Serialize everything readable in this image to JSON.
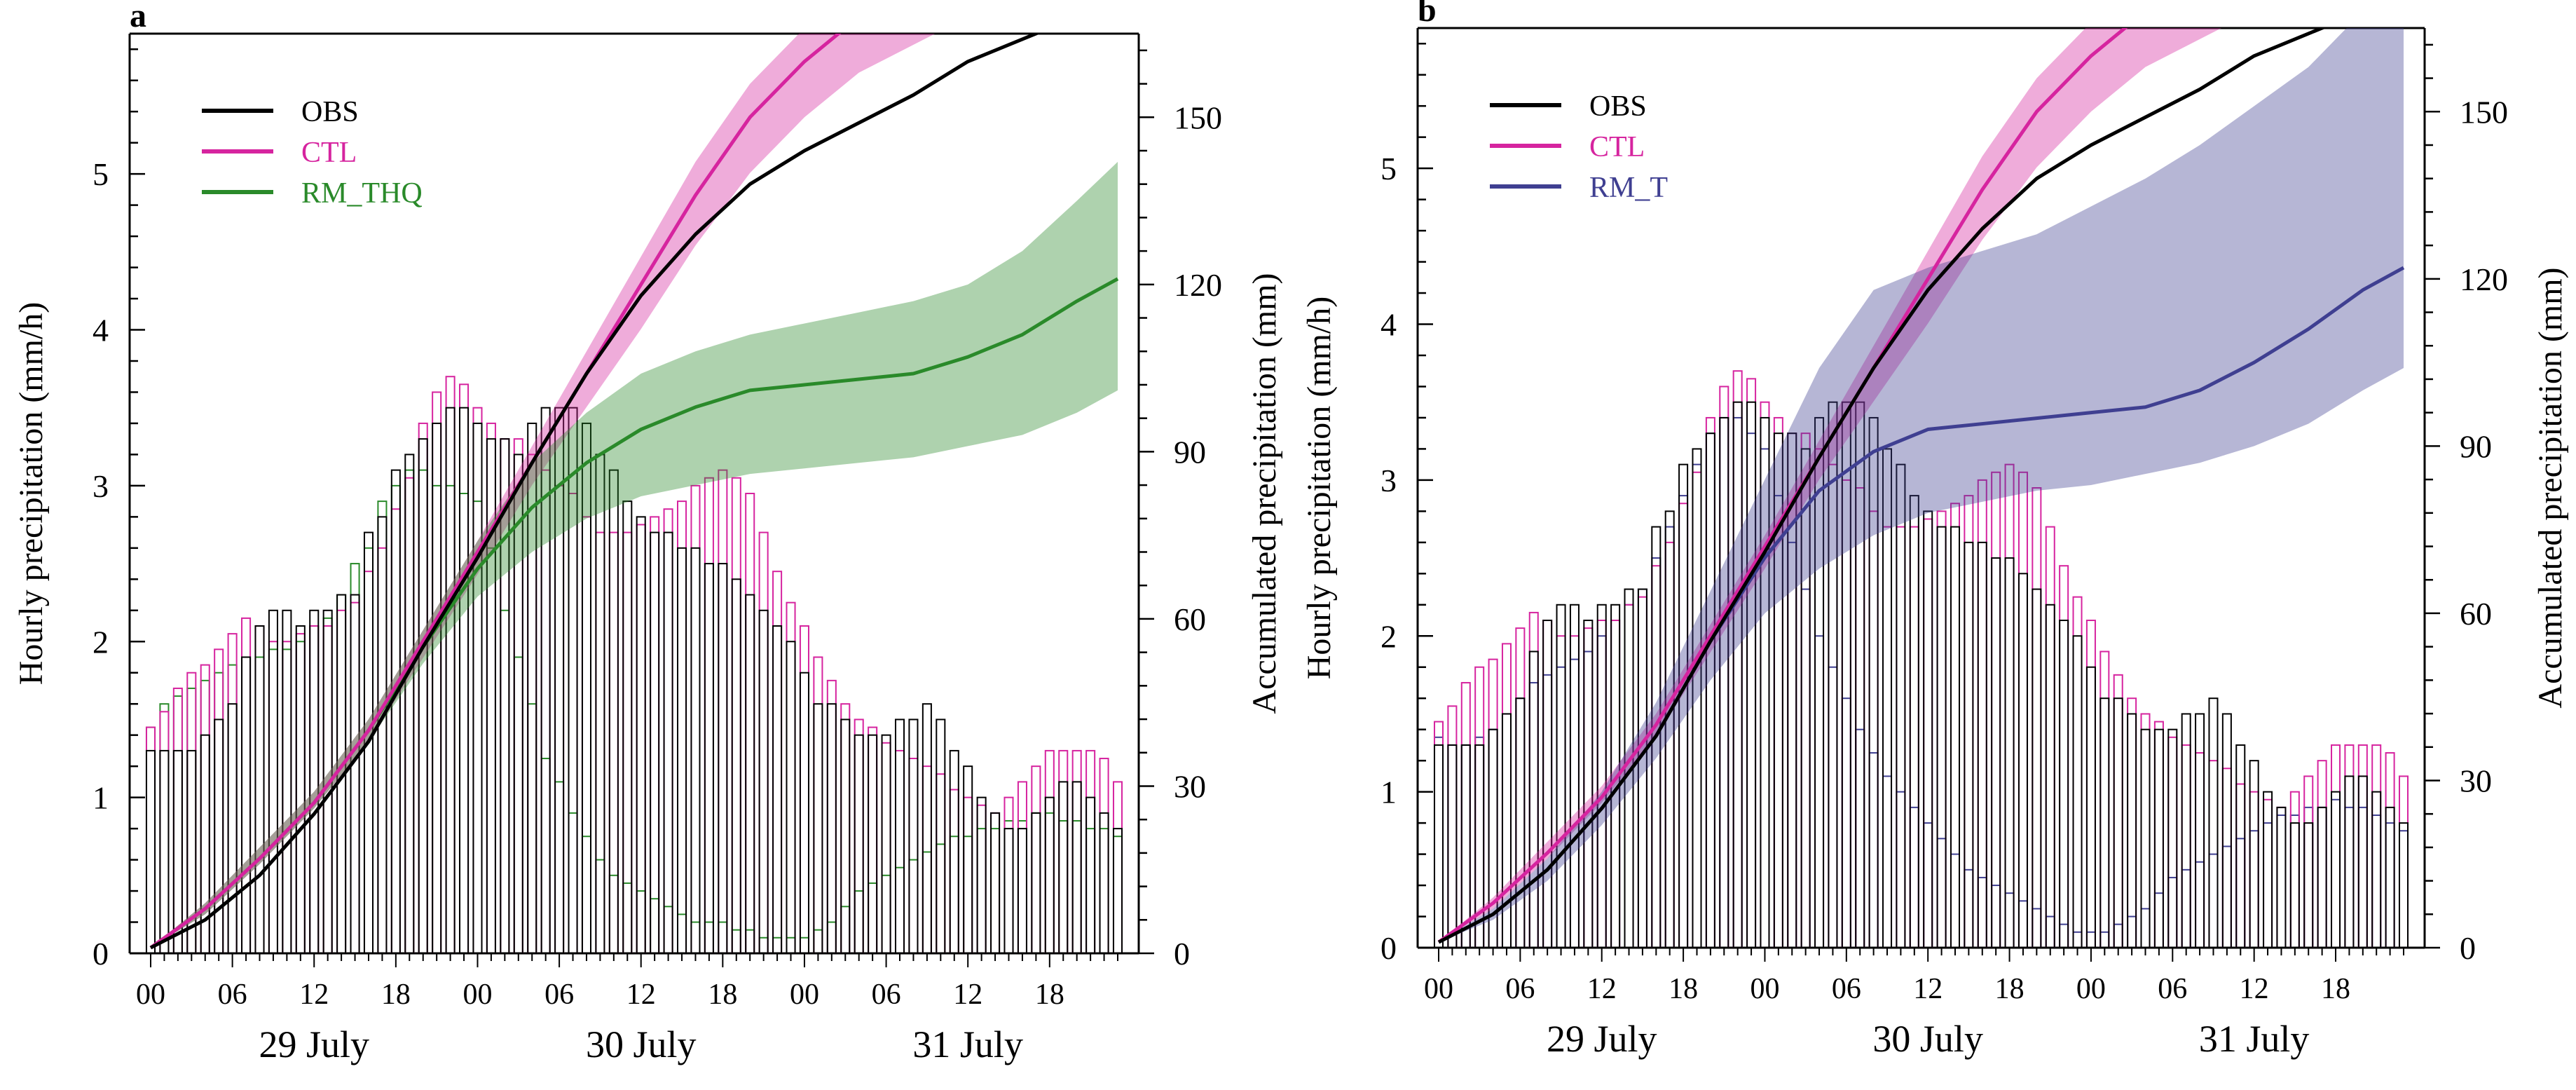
{
  "chart_data": [
    {
      "panel_label": "a",
      "type": "bar+line",
      "ylabel_left": "Hourly precipitation (mm/h)",
      "ylabel_right": "Accumulated precipitation (mm)",
      "ylim_left": [
        0,
        5.9
      ],
      "ylim_right": [
        0,
        165
      ],
      "yticks_left": [
        0,
        1,
        2,
        3,
        4,
        5
      ],
      "yticks_right": [
        0,
        30,
        60,
        90,
        120,
        150
      ],
      "x_hours_range": [
        0,
        71
      ],
      "x_tick_labels": [
        "00",
        "06",
        "12",
        "18",
        "00",
        "06",
        "12",
        "18",
        "00",
        "06",
        "12",
        "18"
      ],
      "x_tick_hours": [
        0,
        6,
        12,
        18,
        24,
        30,
        36,
        42,
        48,
        54,
        60,
        66
      ],
      "date_labels": [
        {
          "text": "29 July",
          "hour": 12
        },
        {
          "text": "30 July",
          "hour": 36
        },
        {
          "text": "31 July",
          "hour": 60
        }
      ],
      "legend_position": "top-left",
      "legend": [
        {
          "name": "OBS",
          "color": "#000000"
        },
        {
          "name": "CTL",
          "color": "#d6249f"
        },
        {
          "name": "RM_THQ",
          "color": "#2a8a2a"
        }
      ],
      "bars": {
        "hours": [
          0,
          1,
          2,
          3,
          4,
          5,
          6,
          7,
          8,
          9,
          10,
          11,
          12,
          13,
          14,
          15,
          16,
          17,
          18,
          19,
          20,
          21,
          22,
          23,
          24,
          25,
          26,
          27,
          28,
          29,
          30,
          31,
          32,
          33,
          34,
          35,
          36,
          37,
          38,
          39,
          40,
          41,
          42,
          43,
          44,
          45,
          46,
          47,
          48,
          49,
          50,
          51,
          52,
          53,
          54,
          55,
          56,
          57,
          58,
          59,
          60,
          61,
          62,
          63,
          64,
          65,
          66,
          67,
          68,
          69,
          70,
          71
        ],
        "OBS": [
          1.3,
          1.3,
          1.3,
          1.3,
          1.4,
          1.5,
          1.6,
          1.9,
          2.1,
          2.2,
          2.2,
          2.1,
          2.2,
          2.2,
          2.3,
          2.3,
          2.7,
          2.8,
          3.1,
          3.2,
          3.3,
          3.4,
          3.5,
          3.5,
          3.4,
          3.3,
          3.3,
          3.2,
          3.4,
          3.5,
          3.5,
          3.5,
          3.4,
          3.2,
          3.1,
          2.9,
          2.8,
          2.7,
          2.7,
          2.6,
          2.6,
          2.5,
          2.5,
          2.4,
          2.3,
          2.2,
          2.1,
          2.0,
          1.8,
          1.6,
          1.6,
          1.5,
          1.4,
          1.4,
          1.4,
          1.5,
          1.5,
          1.6,
          1.5,
          1.3,
          1.2,
          1.0,
          0.9,
          0.8,
          0.8,
          0.9,
          1.0,
          1.1,
          1.1,
          1.0,
          0.9,
          0.8
        ],
        "CTL": [
          1.45,
          1.55,
          1.7,
          1.8,
          1.85,
          1.95,
          2.05,
          2.15,
          2.1,
          2.0,
          2.0,
          2.05,
          2.1,
          2.1,
          2.2,
          2.25,
          2.45,
          2.6,
          2.85,
          3.05,
          3.4,
          3.6,
          3.7,
          3.65,
          3.5,
          3.4,
          3.3,
          3.3,
          3.2,
          3.1,
          3.0,
          2.95,
          2.8,
          2.7,
          2.7,
          2.7,
          2.75,
          2.8,
          2.85,
          2.9,
          3.0,
          3.05,
          3.1,
          3.05,
          2.95,
          2.7,
          2.45,
          2.25,
          2.1,
          1.9,
          1.75,
          1.6,
          1.5,
          1.45,
          1.35,
          1.3,
          1.25,
          1.2,
          1.15,
          1.05,
          1.0,
          0.95,
          0.9,
          1.0,
          1.1,
          1.2,
          1.3,
          1.3,
          1.3,
          1.3,
          1.25,
          1.1
        ],
        "RM_THQ": [
          1.45,
          1.6,
          1.65,
          1.7,
          1.75,
          1.8,
          1.85,
          1.9,
          1.9,
          1.95,
          1.95,
          2.0,
          2.1,
          2.15,
          2.3,
          2.5,
          2.6,
          2.9,
          3.0,
          3.1,
          3.1,
          3.0,
          3.0,
          2.95,
          2.9,
          2.6,
          2.2,
          1.9,
          1.6,
          1.25,
          1.1,
          0.9,
          0.75,
          0.6,
          0.5,
          0.45,
          0.4,
          0.35,
          0.3,
          0.25,
          0.2,
          0.2,
          0.2,
          0.15,
          0.15,
          0.1,
          0.1,
          0.1,
          0.1,
          0.15,
          0.2,
          0.3,
          0.4,
          0.45,
          0.5,
          0.55,
          0.6,
          0.65,
          0.7,
          0.75,
          0.75,
          0.8,
          0.8,
          0.85,
          0.85,
          0.9,
          0.9,
          0.85,
          0.85,
          0.8,
          0.8,
          0.75
        ]
      },
      "accumulated": {
        "hours": [
          0,
          4,
          8,
          12,
          16,
          20,
          24,
          28,
          32,
          36,
          40,
          44,
          48,
          52,
          56,
          60,
          64,
          68,
          71
        ],
        "OBS": [
          1,
          6,
          14,
          25,
          38,
          55,
          71,
          88,
          104,
          118,
          129,
          138,
          144,
          149,
          154,
          160,
          164,
          168,
          171
        ],
        "CTL": [
          1,
          8,
          17,
          27,
          40,
          56,
          72,
          88,
          104,
          120,
          136,
          150,
          160,
          168,
          173,
          178,
          182,
          188,
          191
        ],
        "CTL_band": [
          [
            1,
            1
          ],
          [
            7,
            9
          ],
          [
            16,
            19
          ],
          [
            26,
            29
          ],
          [
            38,
            42
          ],
          [
            53,
            58
          ],
          [
            68,
            74
          ],
          [
            84,
            91
          ],
          [
            98,
            108
          ],
          [
            112,
            125
          ],
          [
            127,
            142
          ],
          [
            140,
            156
          ],
          [
            150,
            166
          ],
          [
            158,
            175
          ],
          [
            163,
            181
          ],
          [
            168,
            186
          ],
          [
            172,
            190
          ],
          [
            178,
            195
          ],
          [
            181,
            198
          ]
        ],
        "RM_THQ": [
          1,
          8,
          17,
          27,
          40,
          55,
          69,
          80,
          88,
          94,
          98,
          101,
          102,
          103,
          104,
          107,
          111,
          117,
          121
        ],
        "RM_THQ_band": [
          [
            1,
            1
          ],
          [
            7,
            9
          ],
          [
            16,
            19
          ],
          [
            26,
            29
          ],
          [
            38,
            42
          ],
          [
            52,
            58
          ],
          [
            64,
            74
          ],
          [
            72,
            88
          ],
          [
            78,
            97
          ],
          [
            82,
            104
          ],
          [
            84,
            108
          ],
          [
            86,
            111
          ],
          [
            87,
            113
          ],
          [
            88,
            115
          ],
          [
            89,
            117
          ],
          [
            91,
            120
          ],
          [
            93,
            126
          ],
          [
            97,
            135
          ],
          [
            101,
            142
          ]
        ]
      }
    },
    {
      "panel_label": "b",
      "type": "bar+line",
      "ylabel_left": "Hourly precipitation (mm/h)",
      "ylabel_right": "Accumulated precipitation (mm)",
      "ylim_left": [
        0,
        5.9
      ],
      "ylim_right": [
        0,
        165
      ],
      "yticks_left": [
        0,
        1,
        2,
        3,
        4,
        5
      ],
      "yticks_right": [
        0,
        30,
        60,
        90,
        120,
        150
      ],
      "x_hours_range": [
        0,
        71
      ],
      "x_tick_labels": [
        "00",
        "06",
        "12",
        "18",
        "00",
        "06",
        "12",
        "18",
        "00",
        "06",
        "12",
        "18"
      ],
      "x_tick_hours": [
        0,
        6,
        12,
        18,
        24,
        30,
        36,
        42,
        48,
        54,
        60,
        66
      ],
      "date_labels": [
        {
          "text": "29 July",
          "hour": 12
        },
        {
          "text": "30 July",
          "hour": 36
        },
        {
          "text": "31 July",
          "hour": 60
        }
      ],
      "legend_position": "top-left",
      "legend": [
        {
          "name": "OBS",
          "color": "#000000"
        },
        {
          "name": "CTL",
          "color": "#d6249f"
        },
        {
          "name": "RM_T",
          "color": "#3f3f91"
        }
      ],
      "bars": {
        "hours": [
          0,
          1,
          2,
          3,
          4,
          5,
          6,
          7,
          8,
          9,
          10,
          11,
          12,
          13,
          14,
          15,
          16,
          17,
          18,
          19,
          20,
          21,
          22,
          23,
          24,
          25,
          26,
          27,
          28,
          29,
          30,
          31,
          32,
          33,
          34,
          35,
          36,
          37,
          38,
          39,
          40,
          41,
          42,
          43,
          44,
          45,
          46,
          47,
          48,
          49,
          50,
          51,
          52,
          53,
          54,
          55,
          56,
          57,
          58,
          59,
          60,
          61,
          62,
          63,
          64,
          65,
          66,
          67,
          68,
          69,
          70,
          71
        ],
        "OBS": [
          1.3,
          1.3,
          1.3,
          1.3,
          1.4,
          1.5,
          1.6,
          1.9,
          2.1,
          2.2,
          2.2,
          2.1,
          2.2,
          2.2,
          2.3,
          2.3,
          2.7,
          2.8,
          3.1,
          3.2,
          3.3,
          3.4,
          3.5,
          3.5,
          3.4,
          3.3,
          3.3,
          3.2,
          3.4,
          3.5,
          3.5,
          3.5,
          3.4,
          3.2,
          3.1,
          2.9,
          2.8,
          2.7,
          2.7,
          2.6,
          2.6,
          2.5,
          2.5,
          2.4,
          2.3,
          2.2,
          2.1,
          2.0,
          1.8,
          1.6,
          1.6,
          1.5,
          1.4,
          1.4,
          1.4,
          1.5,
          1.5,
          1.6,
          1.5,
          1.3,
          1.2,
          1.0,
          0.9,
          0.8,
          0.8,
          0.9,
          1.0,
          1.1,
          1.1,
          1.0,
          0.9,
          0.8
        ],
        "CTL": [
          1.45,
          1.55,
          1.7,
          1.8,
          1.85,
          1.95,
          2.05,
          2.15,
          2.1,
          2.0,
          2.0,
          2.05,
          2.1,
          2.1,
          2.2,
          2.25,
          2.45,
          2.6,
          2.85,
          3.05,
          3.4,
          3.6,
          3.7,
          3.65,
          3.5,
          3.4,
          3.3,
          3.3,
          3.2,
          3.1,
          3.0,
          2.95,
          2.8,
          2.7,
          2.7,
          2.7,
          2.75,
          2.8,
          2.85,
          2.9,
          3.0,
          3.05,
          3.1,
          3.05,
          2.95,
          2.7,
          2.45,
          2.25,
          2.1,
          1.9,
          1.75,
          1.6,
          1.5,
          1.45,
          1.35,
          1.3,
          1.25,
          1.2,
          1.15,
          1.05,
          1.0,
          0.95,
          0.9,
          1.0,
          1.1,
          1.2,
          1.3,
          1.3,
          1.3,
          1.3,
          1.25,
          1.1
        ],
        "RM_T": [
          1.35,
          1.3,
          1.3,
          1.35,
          1.4,
          1.5,
          1.6,
          1.7,
          1.75,
          1.8,
          1.85,
          1.9,
          2.0,
          2.1,
          2.2,
          2.3,
          2.5,
          2.7,
          2.9,
          3.1,
          3.3,
          3.4,
          3.4,
          3.3,
          3.2,
          2.9,
          2.6,
          2.3,
          2.0,
          1.8,
          1.6,
          1.4,
          1.25,
          1.1,
          1.0,
          0.9,
          0.8,
          0.7,
          0.6,
          0.5,
          0.45,
          0.4,
          0.35,
          0.3,
          0.25,
          0.2,
          0.15,
          0.1,
          0.1,
          0.1,
          0.15,
          0.2,
          0.25,
          0.35,
          0.45,
          0.5,
          0.55,
          0.6,
          0.65,
          0.7,
          0.75,
          0.8,
          0.85,
          0.85,
          0.9,
          0.9,
          0.95,
          0.9,
          0.9,
          0.85,
          0.8,
          0.75
        ]
      },
      "accumulated": {
        "hours": [
          0,
          4,
          8,
          12,
          16,
          20,
          24,
          28,
          32,
          36,
          40,
          44,
          48,
          52,
          56,
          60,
          64,
          68,
          71
        ],
        "OBS": [
          1,
          6,
          14,
          25,
          38,
          55,
          71,
          88,
          104,
          118,
          129,
          138,
          144,
          149,
          154,
          160,
          164,
          168,
          171
        ],
        "CTL": [
          1,
          8,
          17,
          27,
          40,
          56,
          72,
          88,
          104,
          120,
          136,
          150,
          160,
          168,
          173,
          178,
          182,
          188,
          191
        ],
        "CTL_band": [
          [
            1,
            1
          ],
          [
            7,
            9
          ],
          [
            16,
            19
          ],
          [
            26,
            29
          ],
          [
            38,
            42
          ],
          [
            53,
            58
          ],
          [
            68,
            74
          ],
          [
            84,
            91
          ],
          [
            98,
            108
          ],
          [
            112,
            125
          ],
          [
            127,
            142
          ],
          [
            140,
            156
          ],
          [
            150,
            166
          ],
          [
            158,
            175
          ],
          [
            163,
            181
          ],
          [
            168,
            186
          ],
          [
            172,
            190
          ],
          [
            178,
            195
          ],
          [
            181,
            198
          ]
        ],
        "RM_T": [
          1,
          6,
          14,
          25,
          38,
          55,
          70,
          82,
          89,
          93,
          94,
          95,
          96,
          97,
          100,
          105,
          111,
          118,
          122
        ],
        "RM_T_band": [
          [
            1,
            1
          ],
          [
            5,
            7
          ],
          [
            12,
            16
          ],
          [
            22,
            28
          ],
          [
            34,
            44
          ],
          [
            48,
            64
          ],
          [
            60,
            84
          ],
          [
            68,
            104
          ],
          [
            74,
            118
          ],
          [
            78,
            122
          ],
          [
            80,
            125
          ],
          [
            82,
            128
          ],
          [
            83,
            133
          ],
          [
            85,
            138
          ],
          [
            87,
            144
          ],
          [
            90,
            151
          ],
          [
            94,
            158
          ],
          [
            100,
            168
          ],
          [
            104,
            176
          ]
        ]
      }
    }
  ]
}
